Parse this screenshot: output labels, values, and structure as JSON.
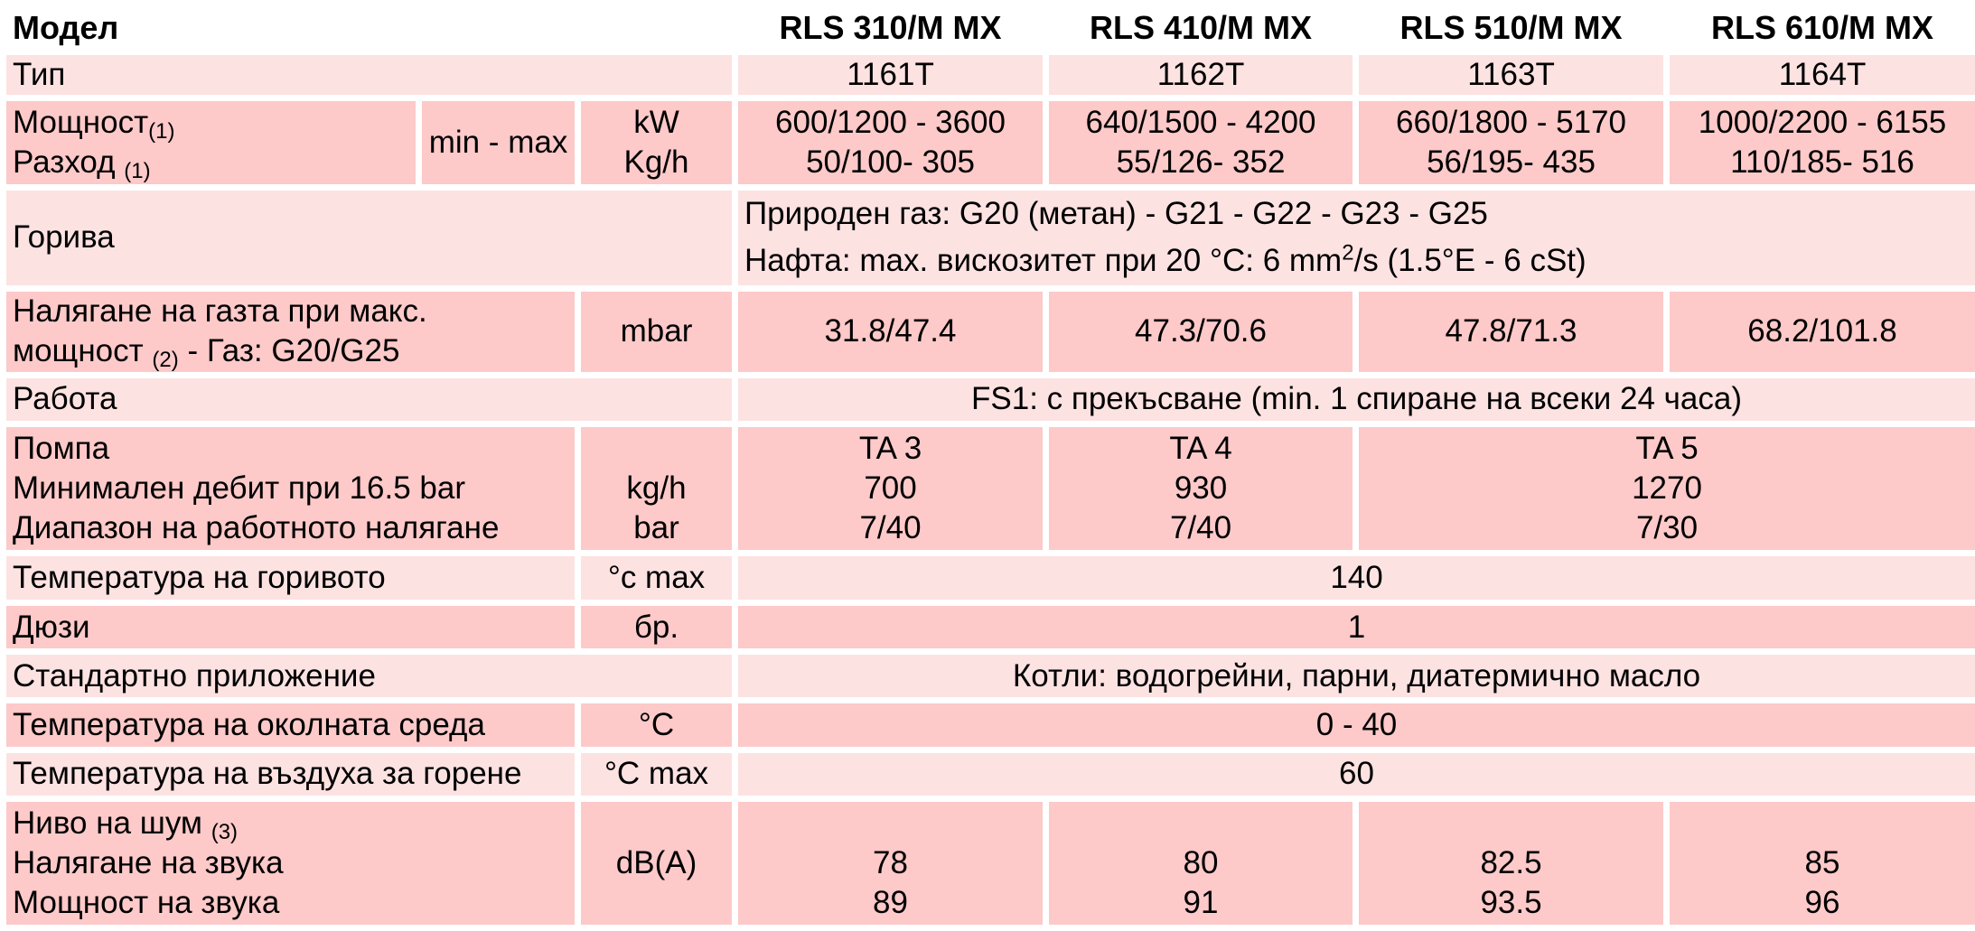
{
  "header": {
    "label": "Модел",
    "models": [
      "RLS 310/M MX",
      "RLS 410/M MX",
      "RLS 510/M MX",
      "RLS 610/M MX"
    ]
  },
  "type_row": {
    "label": "Тип",
    "values": [
      "1161T",
      "1162T",
      "1163T",
      "1164T"
    ]
  },
  "power_row": {
    "label1": "Мощност",
    "note1": "(1)",
    "label2": "Разход ",
    "note2": "(1)",
    "range": "min - max",
    "unit1": "kW",
    "unit2": "Kg/h",
    "values": [
      {
        "a": "600/1200 - 3600",
        "b": "50/100- 305"
      },
      {
        "a": "640/1500 - 4200",
        "b": "55/126- 352"
      },
      {
        "a": "660/1800 - 5170",
        "b": "56/195- 435"
      },
      {
        "a": "1000/2200 - 6155",
        "b": "110/185- 516"
      }
    ]
  },
  "fuel_row": {
    "label": "Горива",
    "gas": "Природен газ: G20 (метан) - G21 - G22 - G23 - G25",
    "oil_a": "Нафта: max. вискозитет при 20 °C: 6 mm",
    "oil_sup": "2",
    "oil_b": "/s (1.5°E - 6 cSt)"
  },
  "gas_pressure_row": {
    "label1": "Налягане на газта при макс.",
    "label2a": "мощност ",
    "note": "(2)",
    "label2b": " - Газ: G20/G25",
    "unit": "mbar",
    "values": [
      "31.8/47.4",
      "47.3/70.6",
      "47.8/71.3",
      "68.2/101.8"
    ]
  },
  "operation_row": {
    "label": "Работа",
    "value": "FS1: с прекъсване (min. 1 спиране на всеки 24 часа)"
  },
  "pump_row": {
    "label1": "Помпа",
    "label2": "Минимален дебит при 16.5 bar",
    "label3": "Диапазон на работното налягане",
    "unit2": "kg/h",
    "unit3": "bar",
    "values": [
      {
        "pump": "TA 3",
        "flow": "700",
        "range": "7/40"
      },
      {
        "pump": "TA 4",
        "flow": "930",
        "range": "7/40"
      },
      {
        "pump": "TA 5",
        "flow": "1270",
        "range": "7/30"
      }
    ]
  },
  "fuel_temp_row": {
    "label": "Температура на горивото",
    "unit": "°c max",
    "value": "140"
  },
  "nozzles_row": {
    "label": "Дюзи",
    "unit": "бр.",
    "value": "1"
  },
  "application_row": {
    "label": "Стандартно приложение",
    "value": "Котли: водогрейни, парни, диатермично масло"
  },
  "ambient_row": {
    "label": "Температура на околната среда",
    "unit": "°C",
    "value": "0 - 40"
  },
  "air_temp_row": {
    "label": "Температура на въздуха за горене",
    "unit": "°C max",
    "value": "60"
  },
  "noise_row": {
    "label1": "Ниво на шум ",
    "note": "(3)",
    "label2": "Налягане на звука",
    "label3": "Мощност на звука",
    "unit": "dB(A)",
    "values": [
      {
        "pressure": "78",
        "power": "89"
      },
      {
        "pressure": "80",
        "power": "91"
      },
      {
        "pressure": "82.5",
        "power": "93.5"
      },
      {
        "pressure": "85",
        "power": "96"
      }
    ]
  }
}
